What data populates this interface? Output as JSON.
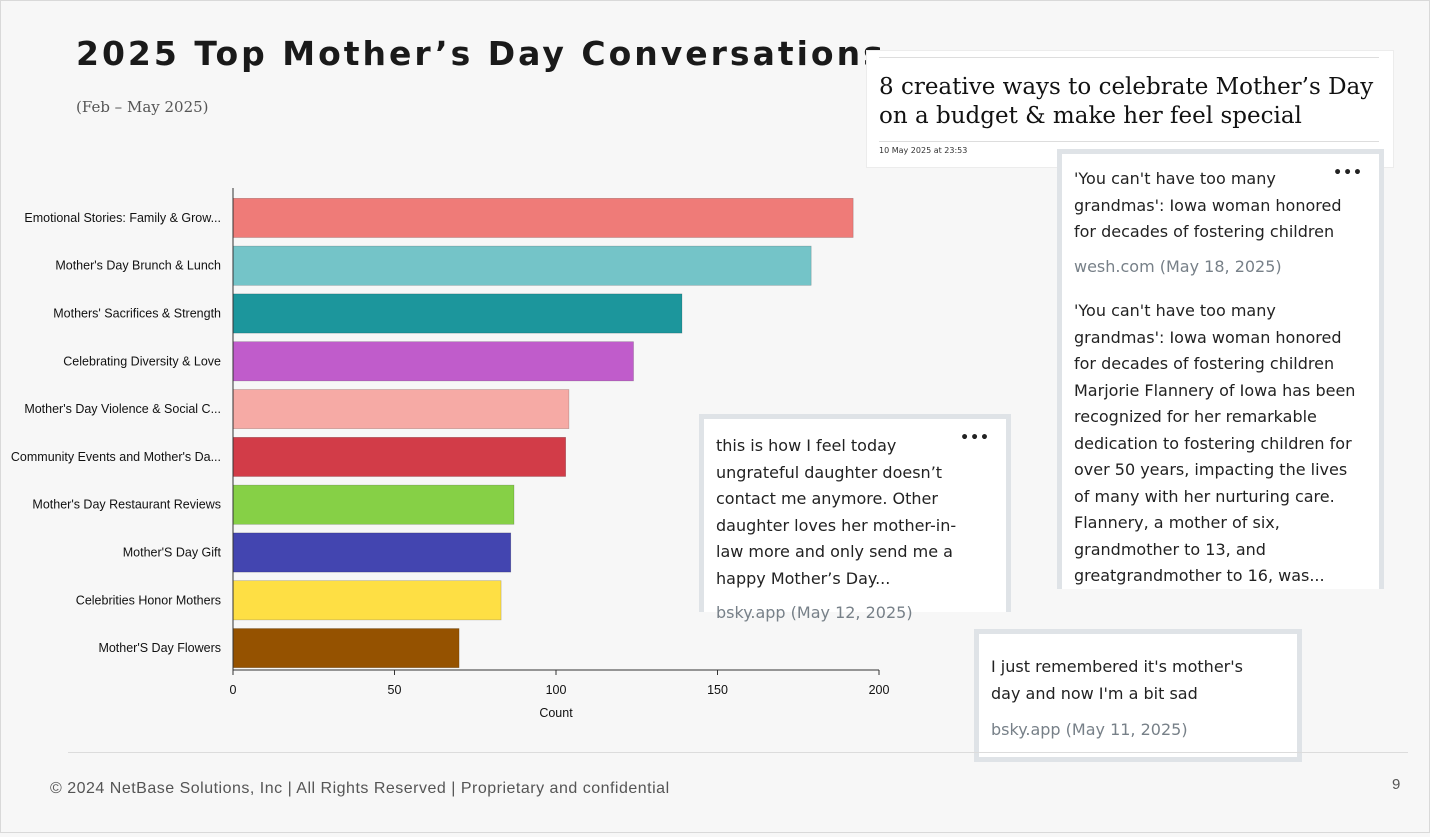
{
  "title": "2025 Top Mother’s Day Conversations",
  "subtitle": "(Feb – May 2025)",
  "chart_data": {
    "type": "bar",
    "orientation": "horizontal",
    "categories": [
      "Emotional Stories: Family & Grow...",
      "Mother's Day Brunch & Lunch",
      "Mothers' Sacrifices & Strength",
      "Celebrating Diversity & Love",
      "Mother's Day Violence & Social C...",
      "Community Events and Mother's Da...",
      "Mother's Day Restaurant Reviews",
      "Mother'S Day Gift",
      "Celebrities Honor Mothers",
      "Mother'S Day Flowers"
    ],
    "values": [
      192,
      179,
      139,
      124,
      104,
      103,
      87,
      86,
      83,
      70
    ],
    "colors": [
      "#ef7b78",
      "#74c4c8",
      "#1c969c",
      "#c05ccb",
      "#f6aaa5",
      "#d23c48",
      "#86d046",
      "#4345b0",
      "#fedf44",
      "#955200"
    ],
    "xlabel": "Count",
    "ylabel": "",
    "xlim": [
      0,
      200
    ],
    "xticks": [
      0,
      50,
      100,
      150,
      200
    ],
    "grid": false,
    "legend": "none"
  },
  "news": {
    "headline": "8 creative ways to celebrate Mother’s Day on a budget & make her feel special",
    "date": "10 May 2025 at 23:53"
  },
  "posts": {
    "grandmas": {
      "title": "'You can't have too many grandmas': Iowa woman honored for decades of fostering children",
      "source": "wesh.com (May 18, 2025)",
      "body": "'You can't have too many grandmas': Iowa woman honored for decades of fostering children Marjorie Flannery of Iowa has been recognized for her remarkable dedication to fostering children for over 50 years, impacting the lives of many with her nurturing care. Flannery, a mother of six, grandmother to 13, and greatgrandmother to 16, was...",
      "more": "•••"
    },
    "ungrateful": {
      "text": "this is how I feel today ungrateful daughter doesn’t contact me anymore. Other daughter loves her mother-in-law more and only send me a happy Mother’s Day...",
      "source": "bsky.app (May 12, 2025)",
      "more": "•••"
    },
    "remembered": {
      "text": "I just remembered it's mother's day and now I'm a bit sad",
      "source": "bsky.app (May 11, 2025)"
    }
  },
  "footer": "© 2024 NetBase Solutions, Inc | All Rights Reserved | Proprietary and confidential",
  "page_number": "9"
}
